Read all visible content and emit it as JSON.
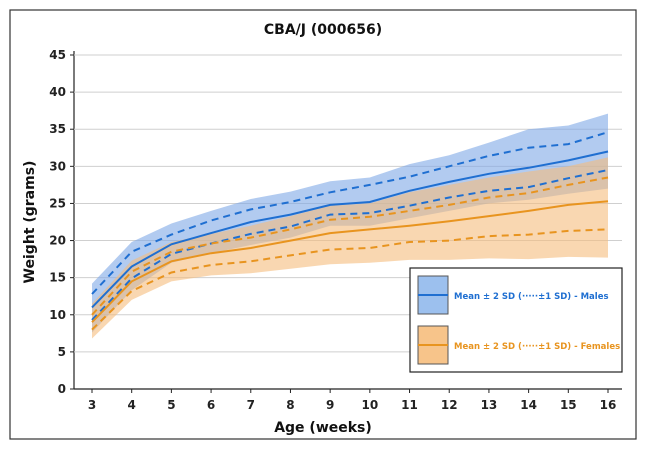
{
  "chart_data": {
    "type": "line",
    "title": "CBA/J (000656)",
    "xlabel": "Age (weeks)",
    "ylabel": "Weight (grams)",
    "x": [
      3,
      4,
      5,
      6,
      7,
      8,
      9,
      10,
      11,
      12,
      13,
      14,
      15,
      16
    ],
    "xlim": [
      3,
      16
    ],
    "ylim": [
      0,
      45
    ],
    "yticks": [
      0,
      5,
      10,
      15,
      20,
      25,
      30,
      35,
      40,
      45
    ],
    "grid": "horizontal",
    "legend_position": "bottom-right",
    "series": [
      {
        "name": "Mean ± 2 SD (·····±1 SD) - Males",
        "color": "#1f6fd1",
        "band_color": "#7fa9e6",
        "mean": [
          11.0,
          16.5,
          19.5,
          21.0,
          22.5,
          23.5,
          24.8,
          25.2,
          26.7,
          27.9,
          29.0,
          29.8,
          30.8,
          32.0
        ],
        "plus_1sd": [
          12.8,
          18.5,
          20.8,
          22.7,
          24.2,
          25.2,
          26.5,
          27.5,
          28.6,
          30.0,
          31.4,
          32.5,
          33.0,
          34.6
        ],
        "minus_1sd": [
          9.3,
          14.9,
          18.2,
          19.6,
          20.9,
          21.9,
          23.5,
          23.7,
          24.7,
          25.8,
          26.7,
          27.2,
          28.4,
          29.5
        ],
        "plus_2sd": [
          14.2,
          19.8,
          22.3,
          24.0,
          25.6,
          26.6,
          28.0,
          28.5,
          30.3,
          31.5,
          33.2,
          35.0,
          35.5,
          37.1
        ],
        "minus_2sd": [
          7.6,
          13.3,
          17.0,
          18.3,
          19.4,
          20.4,
          22.0,
          22.0,
          23.0,
          24.0,
          25.0,
          25.5,
          26.3,
          27.0
        ]
      },
      {
        "name": "Mean ± 2 SD (·····±1 SD) - Females",
        "color": "#e8941f",
        "band_color": "#f5bd7d",
        "mean": [
          9.0,
          14.5,
          17.2,
          18.3,
          19.0,
          20.0,
          21.0,
          21.5,
          22.0,
          22.6,
          23.3,
          24.0,
          24.8,
          25.3
        ],
        "plus_1sd": [
          10.0,
          15.8,
          18.5,
          19.6,
          20.4,
          21.5,
          22.8,
          23.2,
          24.0,
          24.8,
          25.8,
          26.4,
          27.5,
          28.5
        ],
        "minus_1sd": [
          8.0,
          13.2,
          15.7,
          16.7,
          17.2,
          18.0,
          18.8,
          19.0,
          19.8,
          20.0,
          20.6,
          20.8,
          21.3,
          21.5
        ],
        "plus_2sd": [
          11.5,
          17.3,
          19.8,
          20.9,
          22.0,
          23.3,
          24.7,
          25.0,
          26.5,
          27.5,
          28.5,
          29.3,
          30.0,
          31.2
        ],
        "minus_2sd": [
          6.8,
          12.0,
          14.5,
          15.3,
          15.6,
          16.2,
          16.8,
          17.0,
          17.4,
          17.4,
          17.6,
          17.5,
          17.8,
          17.7
        ]
      }
    ],
    "legend": [
      {
        "label": "Mean ± 2 SD (·····±1 SD) - Males",
        "color": "#1f6fd1",
        "swatch": "#9cc0ee"
      },
      {
        "label": "Mean ± 2 SD (·····±1 SD) - Females",
        "color": "#e8941f",
        "swatch": "#f7c48a"
      }
    ]
  }
}
